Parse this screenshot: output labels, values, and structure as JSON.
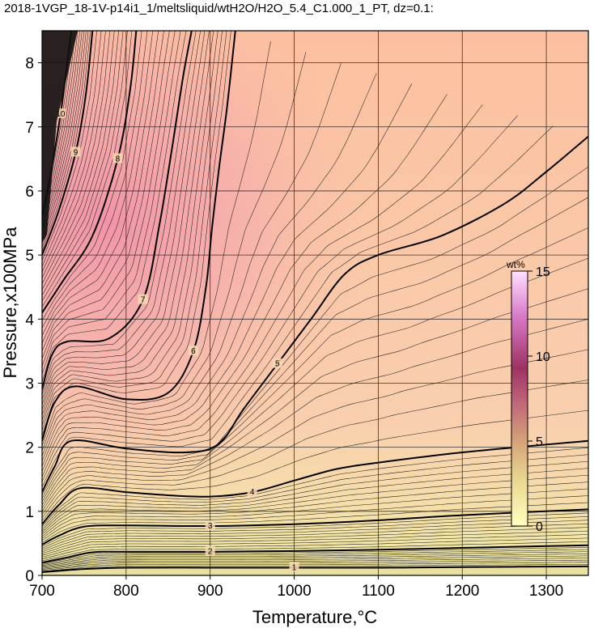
{
  "chart_data": {
    "type": "heatmap",
    "title": "2018-1VGP_18-1V-p14i1_1/meltsliquid/wtH2O/H2O_5.4_C1.000_1_PT, dz=0.1:",
    "xlabel": "Temperature,°C",
    "ylabel": "Pressure,x100MPa",
    "xlim": [
      700,
      1350
    ],
    "ylim": [
      0,
      8.5
    ],
    "xticks": [
      "700",
      "800",
      "900",
      "1000",
      "1100",
      "1200",
      "1300"
    ],
    "yticks": [
      "0",
      "1",
      "2",
      "3",
      "4",
      "5",
      "6",
      "7",
      "8"
    ],
    "grid": true,
    "colorbar": {
      "label": "wt%",
      "range": [
        0,
        15
      ],
      "ticks": [
        "0",
        "5",
        "10",
        "15"
      ],
      "colors": [
        "#ffffc0",
        "#e8d48a",
        "#d4a078",
        "#c0607a",
        "#a03060",
        "#d878c8",
        "#ffd8ff"
      ]
    },
    "contours": [
      {
        "level": 1,
        "label": "1",
        "points": [
          [
            700,
            0.05
          ],
          [
            750,
            0.1
          ],
          [
            800,
            0.12
          ],
          [
            900,
            0.12
          ],
          [
            1000,
            0.12
          ],
          [
            1100,
            0.12
          ],
          [
            1200,
            0.13
          ],
          [
            1350,
            0.14
          ]
        ]
      },
      {
        "level": 2,
        "label": "2",
        "points": [
          [
            700,
            0.2
          ],
          [
            730,
            0.28
          ],
          [
            760,
            0.36
          ],
          [
            800,
            0.37
          ],
          [
            900,
            0.37
          ],
          [
            1000,
            0.38
          ],
          [
            1100,
            0.4
          ],
          [
            1200,
            0.43
          ],
          [
            1350,
            0.47
          ]
        ]
      },
      {
        "level": 3,
        "label": "3",
        "points": [
          [
            700,
            0.48
          ],
          [
            720,
            0.62
          ],
          [
            750,
            0.76
          ],
          [
            800,
            0.78
          ],
          [
            900,
            0.77
          ],
          [
            1000,
            0.8
          ],
          [
            1100,
            0.86
          ],
          [
            1200,
            0.94
          ],
          [
            1350,
            1.03
          ]
        ]
      },
      {
        "level": 4,
        "label": "4",
        "points": [
          [
            700,
            0.8
          ],
          [
            720,
            1.1
          ],
          [
            745,
            1.36
          ],
          [
            800,
            1.3
          ],
          [
            850,
            1.25
          ],
          [
            900,
            1.23
          ],
          [
            950,
            1.3
          ],
          [
            1000,
            1.48
          ],
          [
            1050,
            1.66
          ],
          [
            1100,
            1.76
          ],
          [
            1200,
            1.92
          ],
          [
            1350,
            2.1
          ]
        ]
      },
      {
        "level": 5,
        "label": "5",
        "points": [
          [
            700,
            1.3
          ],
          [
            715,
            1.7
          ],
          [
            735,
            2.1
          ],
          [
            800,
            1.98
          ],
          [
            870,
            1.92
          ],
          [
            910,
            2.05
          ],
          [
            940,
            2.6
          ],
          [
            980,
            3.3
          ],
          [
            1020,
            4.0
          ],
          [
            1060,
            4.7
          ],
          [
            1100,
            5.0
          ],
          [
            1175,
            5.3
          ],
          [
            1250,
            5.8
          ],
          [
            1300,
            6.3
          ],
          [
            1350,
            6.85
          ]
        ]
      },
      {
        "level": 6,
        "label": "6",
        "points": [
          [
            700,
            2.1
          ],
          [
            715,
            2.7
          ],
          [
            740,
            2.95
          ],
          [
            800,
            2.75
          ],
          [
            850,
            2.85
          ],
          [
            880,
            3.5
          ],
          [
            895,
            4.5
          ],
          [
            902,
            5.4
          ],
          [
            910,
            6.3
          ],
          [
            920,
            7.3
          ],
          [
            930,
            8.5
          ]
        ]
      },
      {
        "level": 7,
        "label": "7",
        "points": [
          [
            700,
            2.9
          ],
          [
            712,
            3.45
          ],
          [
            730,
            3.65
          ],
          [
            780,
            3.7
          ],
          [
            820,
            4.3
          ],
          [
            840,
            5.5
          ],
          [
            855,
            6.7
          ],
          [
            868,
            7.8
          ],
          [
            878,
            8.5
          ]
        ]
      },
      {
        "level": 8,
        "label": "8",
        "points": [
          [
            700,
            4.1
          ],
          [
            725,
            4.6
          ],
          [
            760,
            5.3
          ],
          [
            790,
            6.5
          ],
          [
            805,
            7.6
          ],
          [
            812,
            8.5
          ]
        ]
      },
      {
        "level": 9,
        "label": "9",
        "points": [
          [
            700,
            5.0
          ],
          [
            720,
            5.7
          ],
          [
            740,
            6.6
          ],
          [
            752,
            7.5
          ],
          [
            760,
            8.5
          ]
        ]
      },
      {
        "level": 10,
        "label": "10",
        "points": [
          [
            700,
            5.6
          ],
          [
            712,
            6.4
          ],
          [
            722,
            7.2
          ],
          [
            730,
            8.0
          ],
          [
            735,
            8.5
          ]
        ]
      }
    ]
  }
}
